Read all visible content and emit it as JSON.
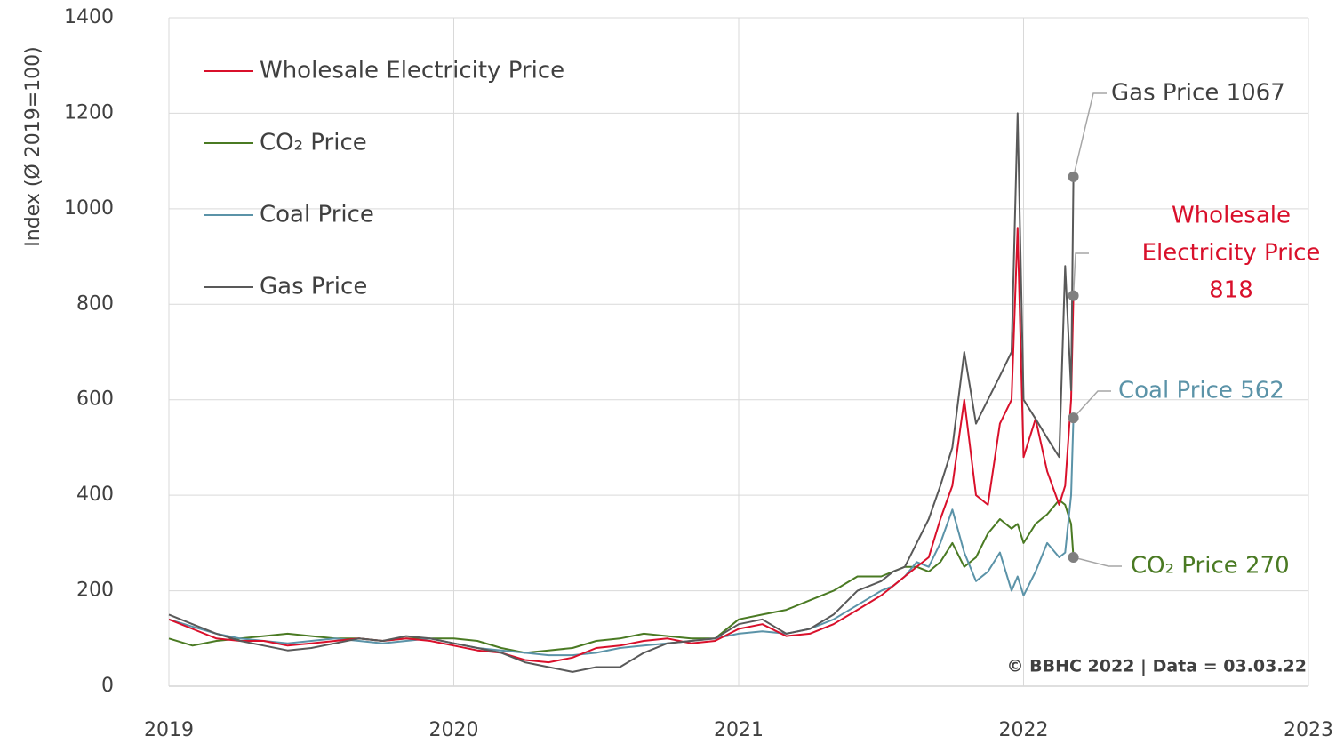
{
  "chart_data": {
    "type": "line",
    "y_label": "Index (Ø  2019=100)",
    "xlim": [
      2019,
      2023
    ],
    "xticks": [
      2019,
      2020,
      2021,
      2022,
      2023
    ],
    "ylim": [
      0,
      1400
    ],
    "yticks": [
      0,
      200,
      400,
      600,
      800,
      1000,
      1200,
      1400
    ],
    "grid": true,
    "legend": "top-left",
    "x": [
      2019.0,
      2019.083,
      2019.167,
      2019.25,
      2019.333,
      2019.417,
      2019.5,
      2019.583,
      2019.667,
      2019.75,
      2019.833,
      2019.917,
      2020.0,
      2020.083,
      2020.167,
      2020.25,
      2020.333,
      2020.417,
      2020.5,
      2020.583,
      2020.667,
      2020.75,
      2020.833,
      2020.917,
      2021.0,
      2021.083,
      2021.167,
      2021.25,
      2021.333,
      2021.417,
      2021.5,
      2021.542,
      2021.583,
      2021.625,
      2021.667,
      2021.708,
      2021.75,
      2021.792,
      2021.833,
      2021.875,
      2021.917,
      2021.958,
      2021.979,
      2022.0,
      2022.042,
      2022.083,
      2022.125,
      2022.146,
      2022.167,
      2022.175
    ],
    "series": [
      {
        "name": "Wholesale Electricity Price",
        "color": "#d9102b",
        "values": [
          140,
          120,
          100,
          95,
          95,
          85,
          90,
          95,
          100,
          95,
          100,
          95,
          85,
          75,
          70,
          55,
          50,
          60,
          80,
          85,
          95,
          100,
          90,
          95,
          120,
          130,
          105,
          110,
          130,
          160,
          190,
          210,
          230,
          250,
          270,
          350,
          420,
          600,
          400,
          380,
          550,
          600,
          960,
          480,
          560,
          450,
          380,
          420,
          600,
          818
        ]
      },
      {
        "name": "CO₂ Price",
        "color": "#4a7a23",
        "values": [
          100,
          85,
          95,
          100,
          105,
          110,
          105,
          100,
          100,
          95,
          100,
          100,
          100,
          95,
          80,
          70,
          75,
          80,
          95,
          100,
          110,
          105,
          100,
          100,
          140,
          150,
          160,
          180,
          200,
          230,
          230,
          240,
          250,
          250,
          240,
          260,
          300,
          250,
          270,
          320,
          350,
          330,
          340,
          300,
          340,
          360,
          390,
          380,
          340,
          270
        ]
      },
      {
        "name": "Coal Price",
        "color": "#5b93a8",
        "values": [
          140,
          125,
          110,
          100,
          95,
          90,
          95,
          100,
          95,
          90,
          95,
          100,
          90,
          80,
          75,
          70,
          65,
          65,
          70,
          80,
          85,
          90,
          95,
          100,
          110,
          115,
          110,
          120,
          140,
          170,
          200,
          210,
          230,
          260,
          250,
          300,
          370,
          280,
          220,
          240,
          280,
          200,
          230,
          190,
          240,
          300,
          270,
          280,
          400,
          562
        ]
      },
      {
        "name": "Gas Price",
        "color": "#595959",
        "values": [
          150,
          130,
          110,
          95,
          85,
          75,
          80,
          90,
          100,
          95,
          105,
          100,
          90,
          80,
          70,
          50,
          40,
          30,
          40,
          40,
          70,
          90,
          95,
          100,
          130,
          140,
          110,
          120,
          150,
          200,
          220,
          240,
          250,
          300,
          350,
          420,
          500,
          700,
          550,
          600,
          650,
          700,
          1200,
          600,
          560,
          520,
          480,
          880,
          620,
          1067
        ]
      }
    ],
    "annotations": [
      {
        "series": 3,
        "color": "#404040",
        "lines": [
          "Gas Price 1067"
        ]
      },
      {
        "series": 0,
        "color": "#d9102b",
        "lines": [
          "Wholesale",
          "Electricity Price",
          "818"
        ]
      },
      {
        "series": 2,
        "color": "#5b93a8",
        "lines": [
          "Coal Price  562"
        ]
      },
      {
        "series": 1,
        "color": "#4a7a23",
        "lines": [
          "CO₂ Price  270"
        ]
      }
    ],
    "source": "© BBHC 2022 | Data = 03.03.22"
  }
}
